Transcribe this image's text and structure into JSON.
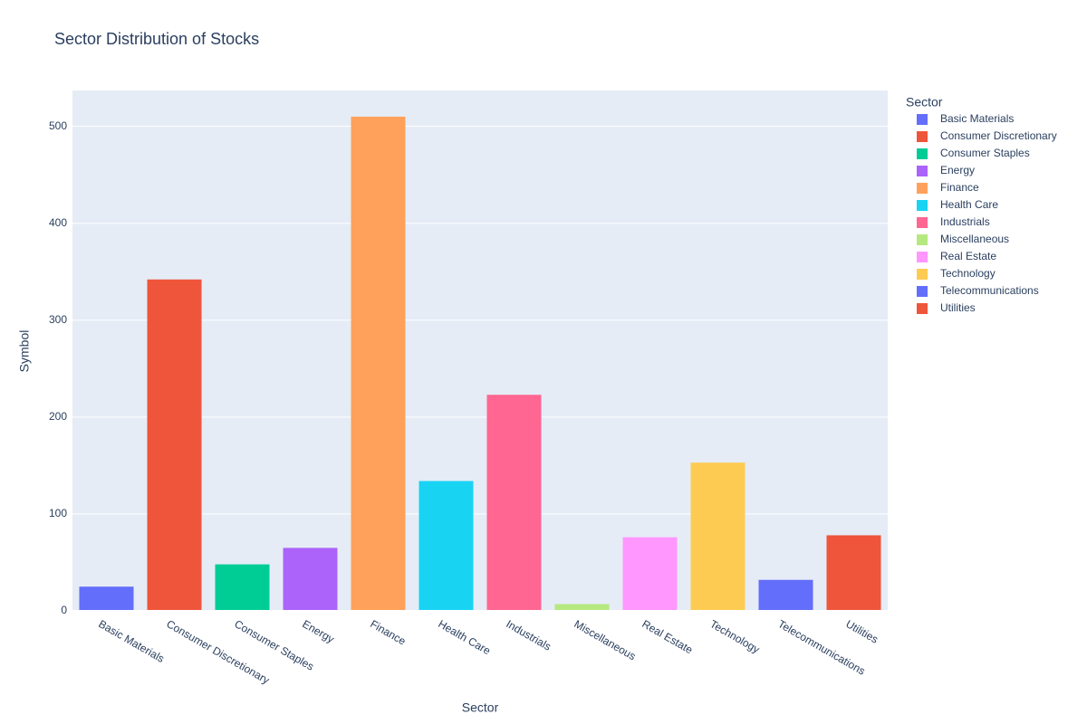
{
  "chart_data": {
    "type": "bar",
    "title": "Sector Distribution of Stocks",
    "x_label": "Sector",
    "y_label": "Symbol",
    "legend_title": "Sector",
    "categories": [
      "Basic Materials",
      "Consumer Discretionary",
      "Consumer Staples",
      "Energy",
      "Finance",
      "Health Care",
      "Industrials",
      "Miscellaneous",
      "Real Estate",
      "Technology",
      "Telecommunications",
      "Utilities"
    ],
    "values": [
      25,
      342,
      48,
      65,
      510,
      134,
      223,
      7,
      76,
      153,
      32,
      78
    ],
    "colors": [
      "#636efa",
      "#ef553b",
      "#00cc96",
      "#ab63fa",
      "#ffa15a",
      "#19d3f3",
      "#ff6692",
      "#b6e880",
      "#ff97ff",
      "#fecb52",
      "#636efa",
      "#ef553b"
    ],
    "ylim": [
      0,
      537
    ],
    "yticks": [
      0,
      100,
      200,
      300,
      400,
      500
    ],
    "grid": true,
    "legend": "right"
  }
}
